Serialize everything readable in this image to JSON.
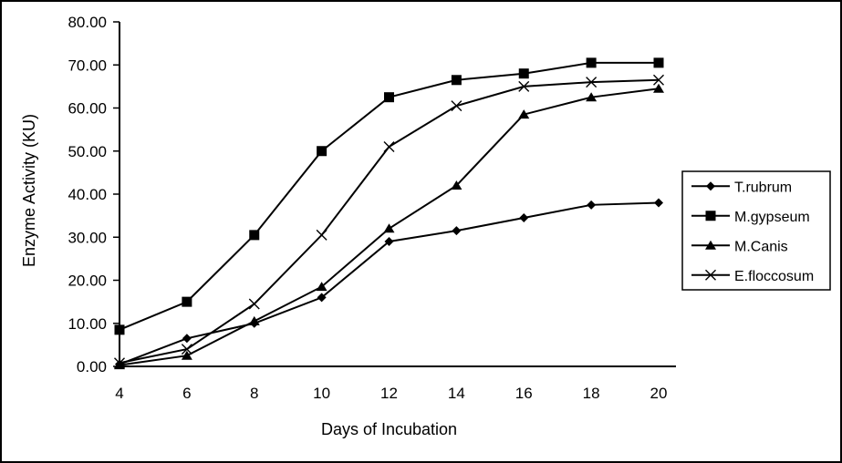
{
  "window": {
    "background_color": "#ffffff",
    "border_color": "#000000",
    "ink_color": "#000000"
  },
  "chart_data": {
    "type": "line",
    "title": "",
    "xlabel": "Days of Incubation",
    "ylabel": "Enzyme Activity (KU)",
    "x": [
      4,
      6,
      8,
      10,
      12,
      14,
      16,
      18,
      20
    ],
    "x_tick_labels": [
      "4",
      "6",
      "8",
      "10",
      "12",
      "14",
      "16",
      "18",
      "20"
    ],
    "y_ticks": [
      0,
      10,
      20,
      30,
      40,
      50,
      60,
      70,
      80
    ],
    "y_tick_labels": [
      "0.00",
      "10.00",
      "20.00",
      "30.00",
      "40.00",
      "50.00",
      "60.00",
      "70.00",
      "80.00"
    ],
    "xlim": [
      4,
      20
    ],
    "ylim": [
      0,
      80
    ],
    "grid": false,
    "legend_position": "right",
    "legend_border": true,
    "line_color": "#000000",
    "series": [
      {
        "name": "T.rubrum",
        "marker": "diamond",
        "values": [
          0.5,
          6.5,
          10.0,
          16.0,
          29.0,
          31.5,
          34.5,
          37.5,
          38.0
        ]
      },
      {
        "name": "M.gypseum",
        "marker": "square",
        "values": [
          8.5,
          15.0,
          30.5,
          50.0,
          62.5,
          66.5,
          68.0,
          70.5,
          70.5
        ]
      },
      {
        "name": "M.Canis",
        "marker": "triangle",
        "values": [
          0.3,
          2.5,
          10.5,
          18.5,
          32.0,
          42.0,
          58.5,
          62.5,
          64.5
        ]
      },
      {
        "name": "E.floccosum",
        "marker": "x",
        "values": [
          0.8,
          4.0,
          14.5,
          30.5,
          51.0,
          60.5,
          65.0,
          66.0,
          66.5
        ]
      }
    ]
  }
}
